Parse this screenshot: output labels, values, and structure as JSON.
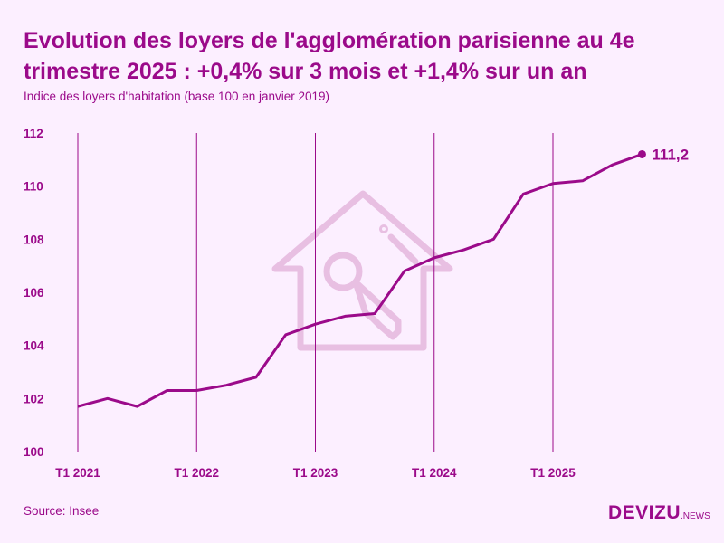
{
  "title": "Evolution des loyers de l'agglomération parisienne au 4e trimestre 2025 : +0,4% sur 3 mois et +1,4% sur un an",
  "subtitle": "Indice des loyers d'habitation (base 100 en janvier 2019)",
  "source": "Source: Insee",
  "logo": {
    "main": "DEVIZU",
    "suffix": ".NEWS"
  },
  "colors": {
    "accent": "#9b0a8a",
    "background": "#fcefff",
    "watermark": "#e8bfe2"
  },
  "watermark_icon": "house-key-icon",
  "chart_data": {
    "type": "line",
    "title": "Evolution des loyers de l'agglomération parisienne au 4e trimestre 2025 : +0,4% sur 3 mois et +1,4% sur un an",
    "ylabel": "Indice des loyers d'habitation (base 100 en janvier 2019)",
    "xlabel": "",
    "ylim": [
      100,
      112
    ],
    "yticks": [
      "100",
      "102",
      "104",
      "106",
      "108",
      "110",
      "112"
    ],
    "xticks": [
      "T1 2021",
      "T1 2022",
      "T1 2023",
      "T1 2024",
      "T1 2025"
    ],
    "grid": "vertical lines at each T1",
    "x": [
      "T1 2021",
      "T2 2021",
      "T3 2021",
      "T4 2021",
      "T1 2022",
      "T2 2022",
      "T3 2022",
      "T4 2022",
      "T1 2023",
      "T2 2023",
      "T3 2023",
      "T4 2023",
      "T1 2024",
      "T2 2024",
      "T3 2024",
      "T4 2024",
      "T1 2025",
      "T2 2025",
      "T3 2025",
      "T4 2025"
    ],
    "values": [
      101.7,
      102.0,
      101.7,
      102.3,
      102.3,
      102.5,
      102.8,
      104.4,
      104.8,
      105.1,
      105.2,
      106.8,
      107.3,
      107.6,
      108.0,
      109.7,
      110.1,
      110.2,
      110.8,
      111.2
    ],
    "end_label": "111,2"
  }
}
